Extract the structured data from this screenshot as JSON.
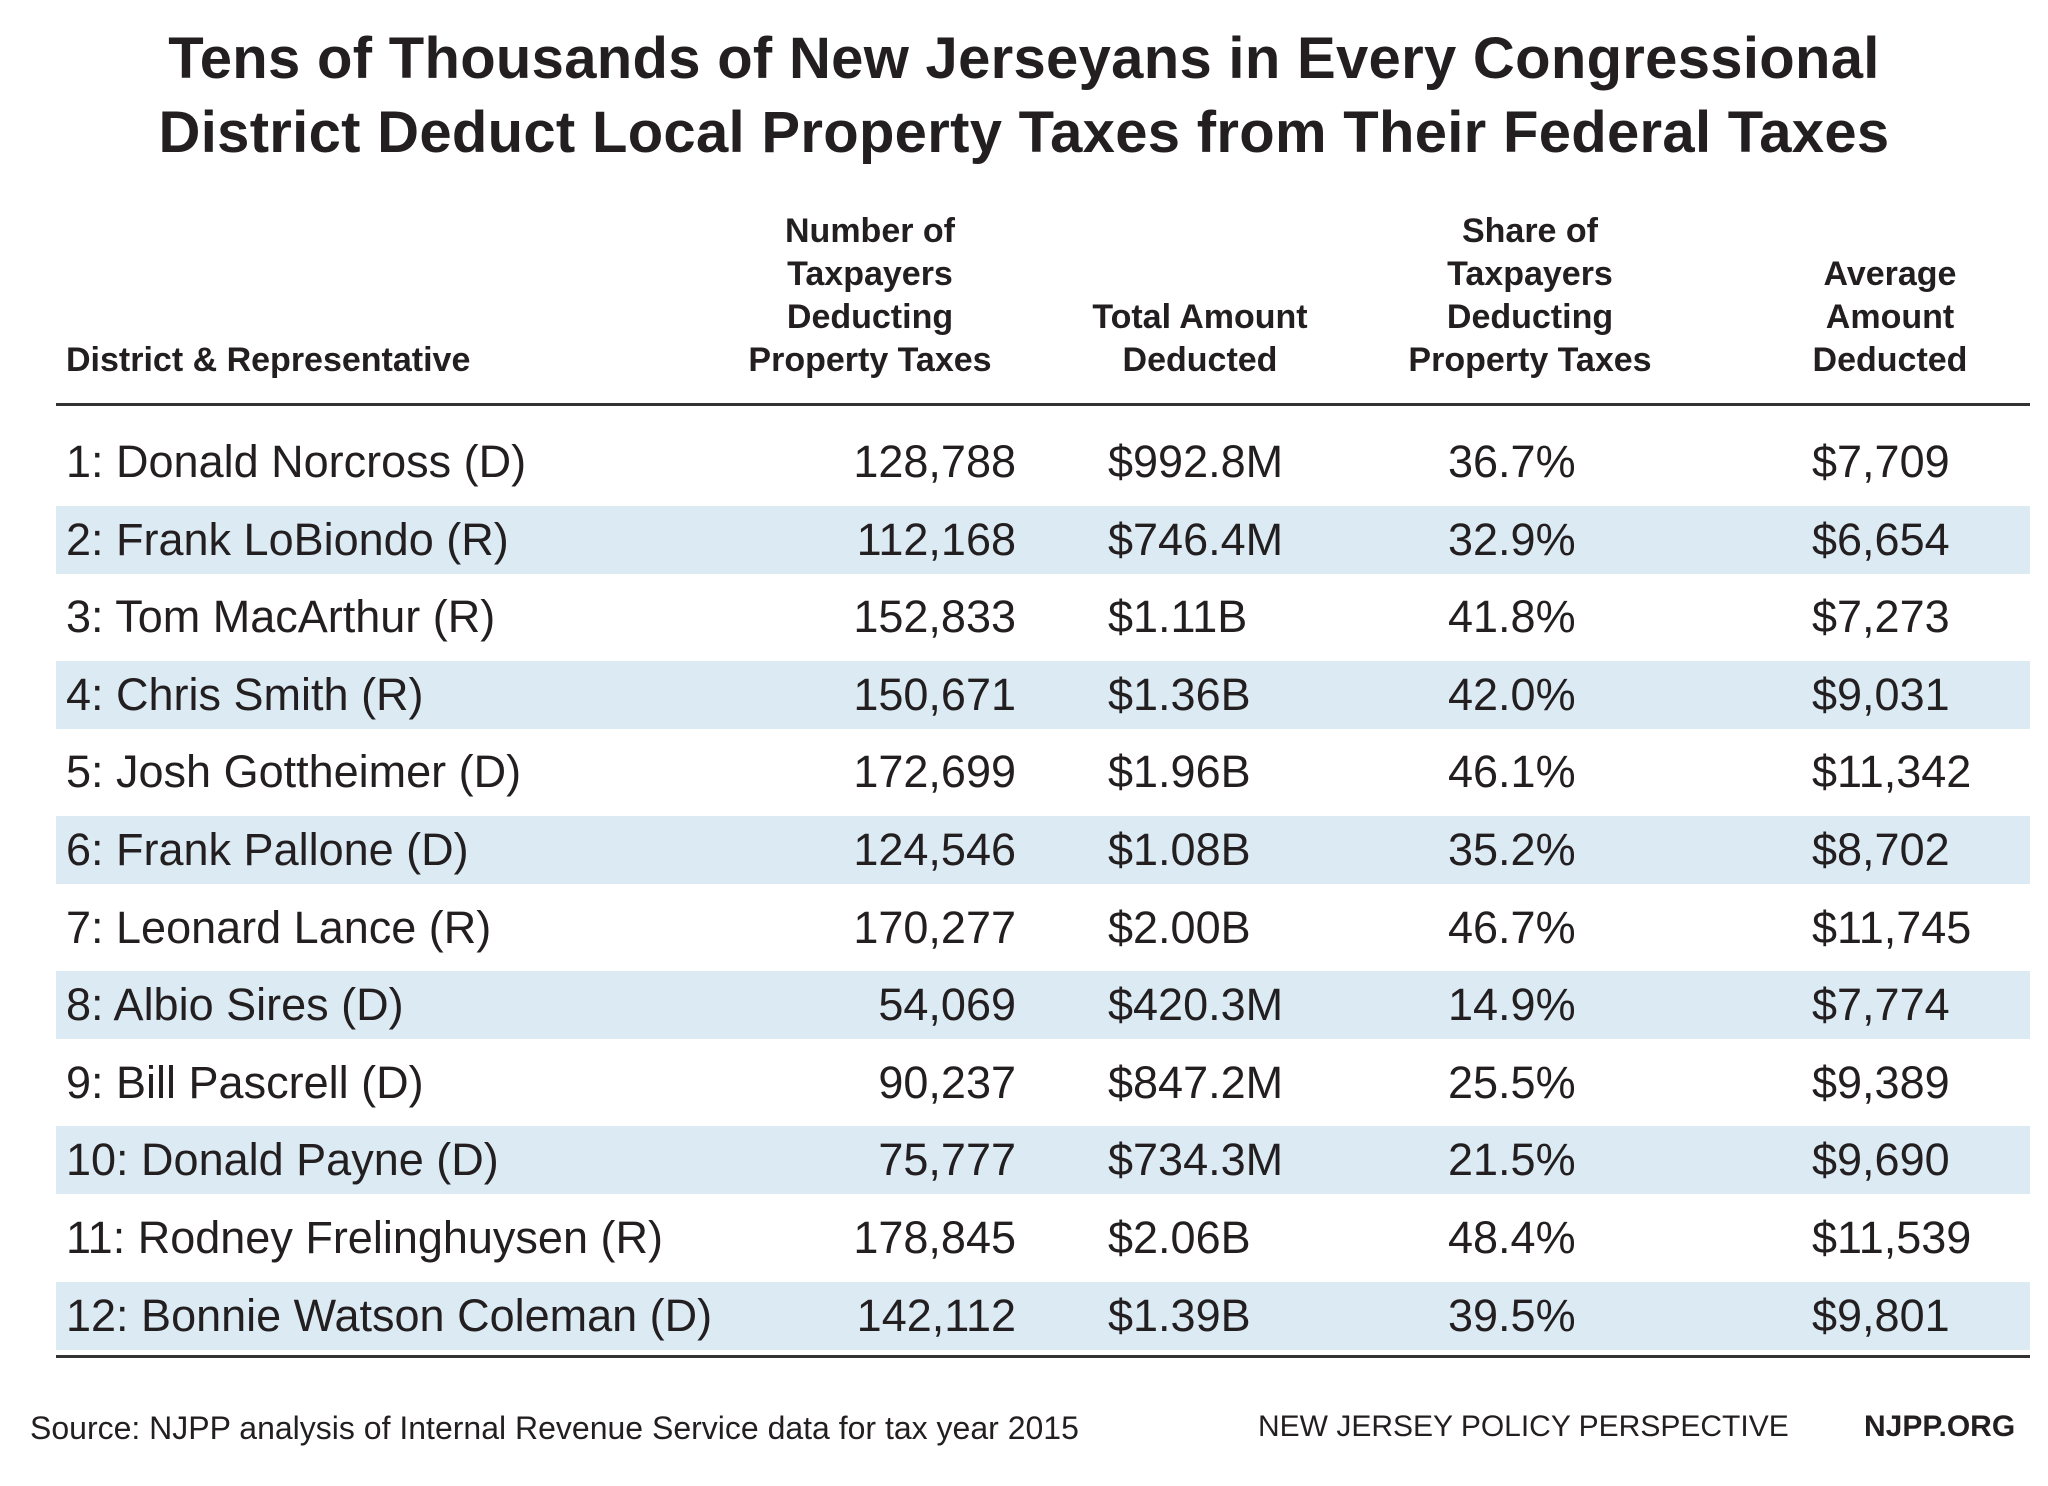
{
  "title": {
    "line1": "Tens of Thousands of New Jerseyans in Every Congressional",
    "line2": "District Deduct Local Property Taxes from Their Federal Taxes"
  },
  "headers": {
    "col1": [
      "District & Representative"
    ],
    "col2": [
      "Number of",
      "Taxpayers",
      "Deducting",
      "Property Taxes"
    ],
    "col3": [
      "Total Amount",
      "Deducted"
    ],
    "col4": [
      "Share of",
      "Taxpayers",
      "Deducting",
      "Property Taxes"
    ],
    "col5": [
      "Average",
      "Amount",
      "Deducted"
    ]
  },
  "rows": [
    {
      "district": "1: Donald Norcross (D)",
      "taxpayers": "128,788",
      "total": "$992.8M",
      "share": "36.7%",
      "average": "$7,709"
    },
    {
      "district": "2: Frank LoBiondo (R)",
      "taxpayers": "112,168",
      "total": "$746.4M",
      "share": "32.9%",
      "average": "$6,654"
    },
    {
      "district": "3: Tom MacArthur (R)",
      "taxpayers": "152,833",
      "total": "$1.11B",
      "share": "41.8%",
      "average": "$7,273"
    },
    {
      "district": "4: Chris Smith (R)",
      "taxpayers": "150,671",
      "total": "$1.36B",
      "share": "42.0%",
      "average": "$9,031"
    },
    {
      "district": "5: Josh Gottheimer (D)",
      "taxpayers": "172,699",
      "total": "$1.96B",
      "share": "46.1%",
      "average": "$11,342"
    },
    {
      "district": "6: Frank Pallone (D)",
      "taxpayers": "124,546",
      "total": "$1.08B",
      "share": "35.2%",
      "average": "$8,702"
    },
    {
      "district": "7: Leonard Lance (R)",
      "taxpayers": "170,277",
      "total": "$2.00B",
      "share": "46.7%",
      "average": "$11,745"
    },
    {
      "district": "8: Albio Sires (D)",
      "taxpayers": "54,069",
      "total": "$420.3M",
      "share": "14.9%",
      "average": "$7,774"
    },
    {
      "district": "9: Bill Pascrell (D)",
      "taxpayers": "90,237",
      "total": "$847.2M",
      "share": "25.5%",
      "average": "$9,389"
    },
    {
      "district": "10: Donald Payne (D)",
      "taxpayers": "75,777",
      "total": "$734.3M",
      "share": "21.5%",
      "average": "$9,690"
    },
    {
      "district": "11: Rodney Frelinghuysen (R)",
      "taxpayers": "178,845",
      "total": "$2.06B",
      "share": "48.4%",
      "average": "$11,539"
    },
    {
      "district": "12: Bonnie Watson Coleman (D)",
      "taxpayers": "142,112",
      "total": "$1.39B",
      "share": "39.5%",
      "average": "$9,801"
    }
  ],
  "footer": {
    "source": "Source: NJPP analysis of Internal Revenue Service data for tax year 2015",
    "org": "NEW JERSEY POLICY PERSPECTIVE",
    "site": "NJPP.ORG"
  },
  "colors": {
    "band": "#dbeaf3",
    "text": "#231f20"
  }
}
